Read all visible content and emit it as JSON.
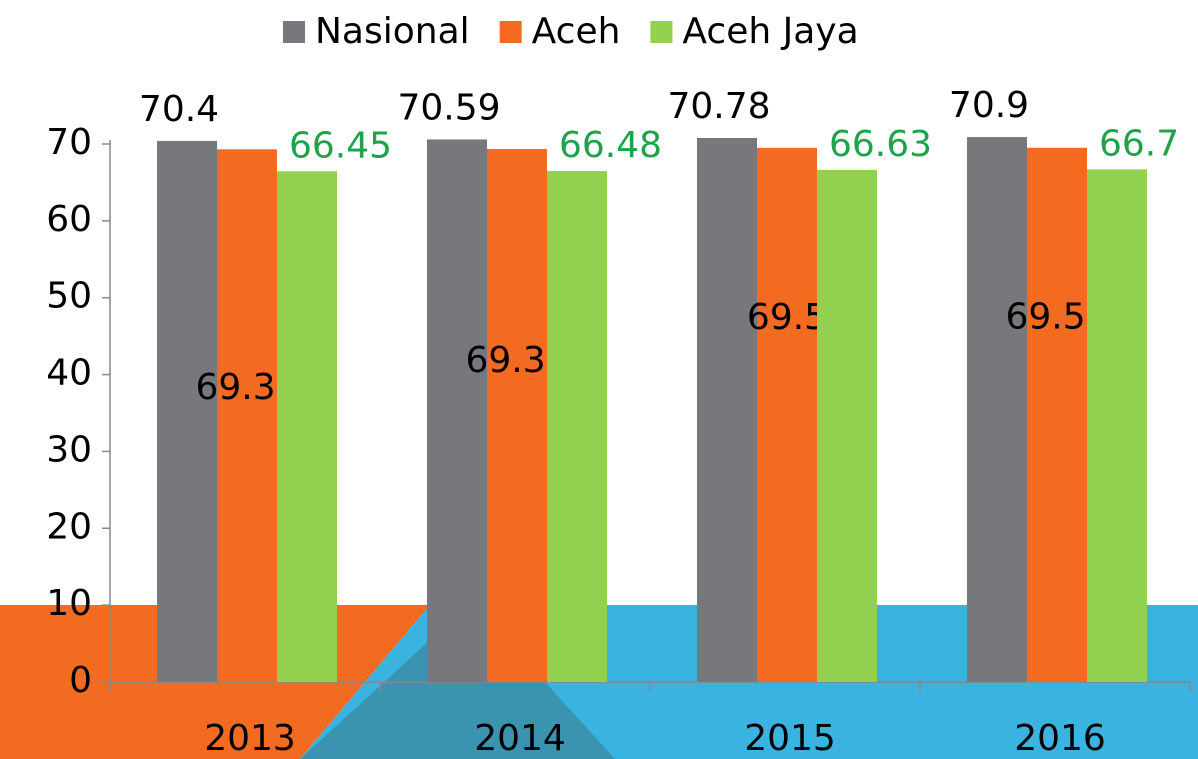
{
  "chart_data": {
    "type": "bar",
    "categories": [
      "2013",
      "2014",
      "2015",
      "2016"
    ],
    "series": [
      {
        "name": "Nasional",
        "color": "#77787b",
        "label_color": "#000000",
        "values": [
          70.4,
          70.59,
          70.78,
          70.9
        ]
      },
      {
        "name": "Aceh",
        "color": "#f26b21",
        "label_color": "#000000",
        "values": [
          69.31,
          69.35,
          69.5,
          69.51
        ]
      },
      {
        "name": "Aceh Jaya",
        "color": "#92d050",
        "label_color": "#1fa34a",
        "values": [
          66.45,
          66.48,
          66.63,
          66.7
        ]
      }
    ],
    "ylim": [
      0,
      70
    ],
    "yticks": [
      0,
      10,
      20,
      30,
      40,
      50,
      60,
      70
    ],
    "grid": false,
    "legend": "top"
  }
}
